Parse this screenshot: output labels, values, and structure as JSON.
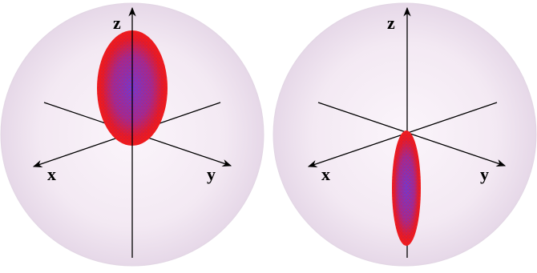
{
  "panels": [
    {
      "axes": {
        "z": "z",
        "x": "x",
        "y": "y"
      }
    },
    {
      "axes": {
        "z": "z",
        "x": "x",
        "y": "y"
      }
    }
  ]
}
